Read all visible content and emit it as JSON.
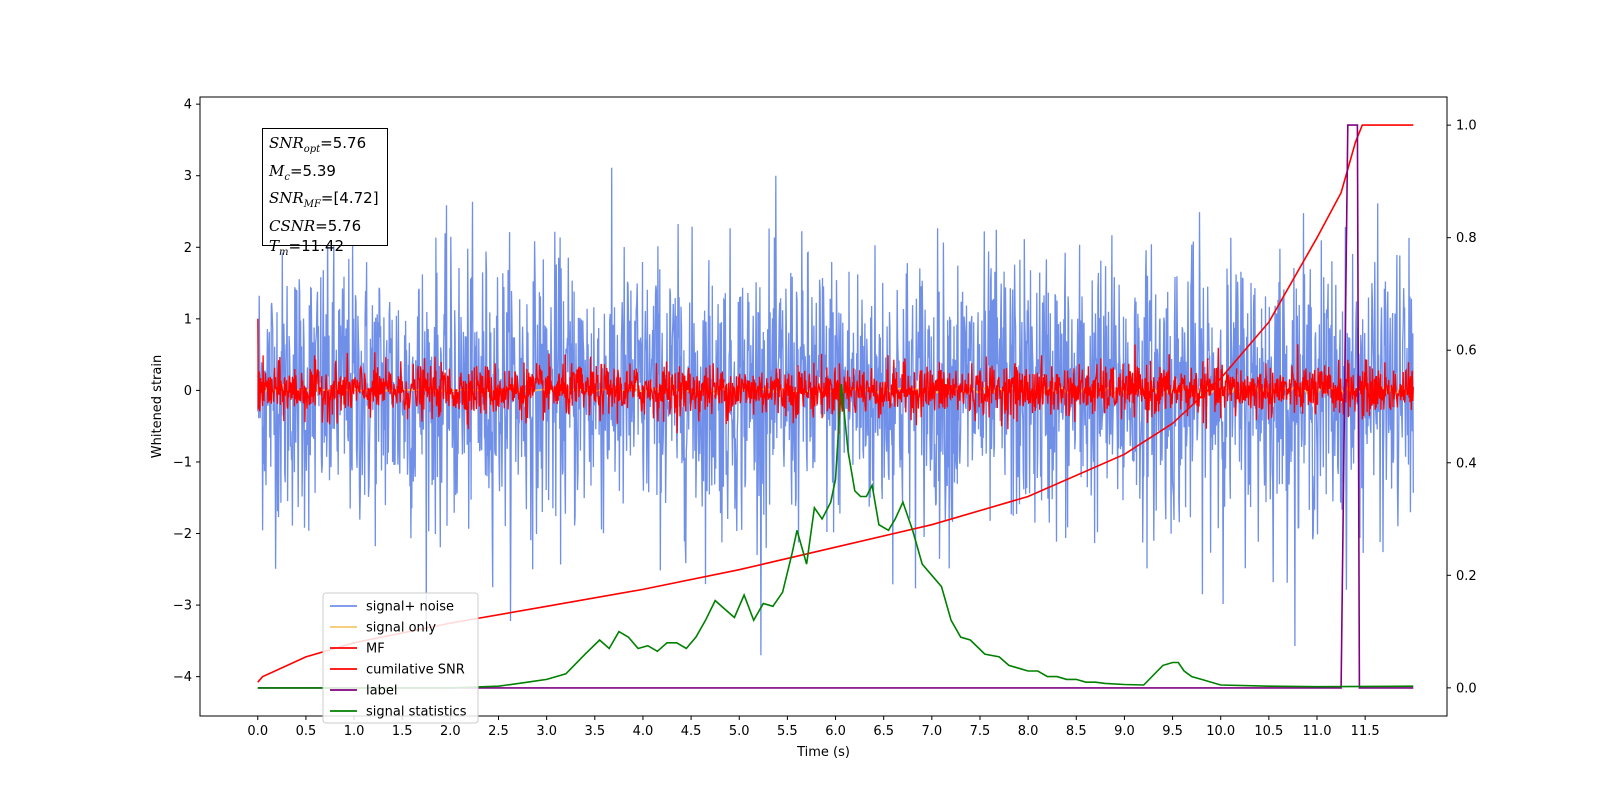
{
  "chart_data": {
    "type": "line",
    "title": "",
    "xlabel": "Time (s)",
    "ylabel": "Whitened strain",
    "xlim": [
      -0.6,
      12.35
    ],
    "ylim": [
      -4.55,
      4.1
    ],
    "y2lim": [
      -0.05,
      1.05
    ],
    "xticks": [
      "0.0",
      "0.5",
      "1.0",
      "1.5",
      "2.0",
      "2.5",
      "3.0",
      "3.5",
      "4.0",
      "4.5",
      "5.0",
      "5.5",
      "6.0",
      "6.5",
      "7.0",
      "7.5",
      "8.0",
      "8.5",
      "9.0",
      "9.5",
      "10.0",
      "10.5",
      "11.0",
      "11.5"
    ],
    "yticks": [
      "4",
      "3",
      "2",
      "1",
      "0",
      "−1",
      "−2",
      "−3",
      "−4"
    ],
    "y2ticks": [
      "1.0",
      "0.8",
      "0.6",
      "0.4",
      "0.2",
      "0.0"
    ],
    "grid": false,
    "legend_position": "lower-left",
    "info_box": {
      "snr_opt_label": "SNR",
      "snr_opt_sub": "opt",
      "snr_opt_value": "=5.76",
      "mc_label": "M",
      "mc_sub": "c",
      "mc_value": "=5.39",
      "snr_mf_label": "SNR",
      "snr_mf_sub": "MF",
      "snr_mf_value": "=[4.72]",
      "csnr_label": "CSNR",
      "csnr_value": "=5.76",
      "tm_label": "T",
      "tm_sub": "m",
      "tm_value": "=11.42"
    },
    "series": [
      {
        "name": "signal+ noise",
        "color": "#6f8fe8",
        "axis": "left",
        "kind": "noise",
        "sigma": 0.95,
        "x_range": [
          0.0,
          12.0
        ],
        "approx_range": [
          -3.7,
          3.7
        ]
      },
      {
        "name": "signal only",
        "color": "#f5c76b",
        "axis": "left",
        "kind": "chirp",
        "x_range": [
          0.0,
          12.0
        ],
        "approx_range": [
          -0.2,
          0.2
        ]
      },
      {
        "name": "MF",
        "color": "#ff0000",
        "axis": "left",
        "kind": "noise",
        "sigma": 0.18,
        "x_range": [
          0.0,
          12.0
        ],
        "approx_range": [
          -0.35,
          1.0
        ]
      },
      {
        "name": "cumilative SNR",
        "color": "#ff0000",
        "axis": "right",
        "x": [
          0.0,
          0.05,
          0.5,
          1.0,
          2.0,
          3.0,
          4.0,
          5.0,
          6.0,
          7.0,
          8.0,
          9.0,
          9.5,
          10.0,
          10.5,
          11.0,
          11.25,
          11.4,
          11.47,
          12.0
        ],
        "y": [
          0.01,
          0.02,
          0.055,
          0.08,
          0.115,
          0.145,
          0.175,
          0.21,
          0.25,
          0.29,
          0.34,
          0.415,
          0.47,
          0.55,
          0.65,
          0.8,
          0.88,
          0.97,
          1.0,
          1.0
        ]
      },
      {
        "name": "label",
        "color": "#800080",
        "axis": "right",
        "x": [
          0.0,
          11.25,
          11.32,
          11.42,
          11.44,
          12.0
        ],
        "y": [
          0.0,
          0.0,
          1.0,
          1.0,
          0.0,
          0.0
        ]
      },
      {
        "name": "signal statistics",
        "color": "#008000",
        "axis": "right",
        "x": [
          0.0,
          1.0,
          2.0,
          2.5,
          2.8,
          3.0,
          3.2,
          3.4,
          3.55,
          3.65,
          3.75,
          3.85,
          3.95,
          4.05,
          4.15,
          4.25,
          4.35,
          4.45,
          4.55,
          4.65,
          4.75,
          4.85,
          4.95,
          5.05,
          5.15,
          5.25,
          5.35,
          5.45,
          5.55,
          5.6,
          5.7,
          5.78,
          5.86,
          5.95,
          6.0,
          6.06,
          6.13,
          6.2,
          6.26,
          6.32,
          6.38,
          6.45,
          6.55,
          6.62,
          6.7,
          6.8,
          6.9,
          7.0,
          7.1,
          7.2,
          7.3,
          7.4,
          7.55,
          7.7,
          7.8,
          7.9,
          8.0,
          8.1,
          8.2,
          8.3,
          8.4,
          8.5,
          8.6,
          8.7,
          8.8,
          9.0,
          9.2,
          9.4,
          9.5,
          9.56,
          9.62,
          9.7,
          9.8,
          10.0,
          10.5,
          11.0,
          12.0
        ],
        "y": [
          0.0,
          0.0,
          0.0,
          0.003,
          0.01,
          0.015,
          0.025,
          0.06,
          0.085,
          0.07,
          0.1,
          0.09,
          0.07,
          0.075,
          0.065,
          0.08,
          0.08,
          0.07,
          0.09,
          0.12,
          0.155,
          0.14,
          0.125,
          0.165,
          0.12,
          0.15,
          0.145,
          0.17,
          0.24,
          0.28,
          0.22,
          0.32,
          0.3,
          0.33,
          0.37,
          0.54,
          0.42,
          0.35,
          0.34,
          0.34,
          0.36,
          0.29,
          0.28,
          0.3,
          0.33,
          0.28,
          0.22,
          0.2,
          0.18,
          0.12,
          0.09,
          0.085,
          0.06,
          0.055,
          0.04,
          0.035,
          0.03,
          0.03,
          0.02,
          0.02,
          0.015,
          0.015,
          0.01,
          0.01,
          0.008,
          0.006,
          0.005,
          0.04,
          0.045,
          0.045,
          0.03,
          0.02,
          0.015,
          0.005,
          0.003,
          0.002,
          0.003
        ]
      }
    ]
  }
}
